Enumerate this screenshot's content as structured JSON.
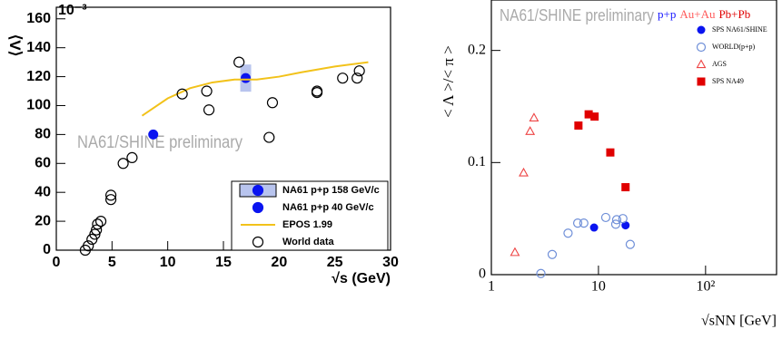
{
  "chart_data": [
    {
      "type": "scatter",
      "multiplier": "10⁻³",
      "xlabel": "√s (GeV)",
      "ylabel": "⟨Λ⟩",
      "annotation": "NA61/SHINE preliminary",
      "xlim": [
        0,
        30
      ],
      "xticks": [
        0,
        5,
        10,
        15,
        20,
        25,
        30
      ],
      "ylim": [
        0,
        168
      ],
      "yticks": [
        0,
        20,
        40,
        60,
        80,
        100,
        120,
        140,
        160
      ],
      "legend": "lower right",
      "series": [
        {
          "name": "NA61 p+p 158 GeV/c",
          "color": "#0a14f0",
          "marker": "box-circle",
          "x": [
            17.0
          ],
          "values": [
            119
          ]
        },
        {
          "name": "NA61 p+p 40 GeV/c",
          "color": "#0a14f0",
          "marker": "circle",
          "x": [
            8.7
          ],
          "values": [
            80
          ]
        },
        {
          "name": "EPOS 1.99",
          "color": "#f2c21a",
          "marker": "line",
          "x": [
            7.7,
            10,
            12,
            14,
            16,
            18,
            20,
            22,
            25,
            28
          ],
          "values": [
            93,
            105,
            112,
            116,
            118,
            118,
            120,
            123,
            127,
            130
          ]
        },
        {
          "name": "World data",
          "color": "#000000",
          "marker": "open-circle",
          "x": [
            2.6,
            2.87,
            3.2,
            3.46,
            3.6,
            3.7,
            4.0,
            4.9,
            4.9,
            6.0,
            6.8,
            11.3,
            13.5,
            13.7,
            16.4,
            19.1,
            19.4,
            23.4,
            23.4,
            25.7,
            27.0,
            27.2
          ],
          "values": [
            0,
            3,
            7.5,
            11,
            14,
            18,
            20,
            38,
            35,
            60,
            64,
            108,
            110,
            97,
            130,
            78,
            102,
            109,
            110,
            119,
            119,
            124
          ]
        }
      ]
    },
    {
      "type": "scatter",
      "xlabel": "√sNN [GeV]",
      "ylabel": "< Λ >/< π >",
      "annotation": "NA61/SHINE preliminary",
      "systems": [
        {
          "text": "p+p",
          "color": "#1a1aff"
        },
        {
          "text": "Au+Au",
          "color": "#ff5a5a"
        },
        {
          "text": "Pb+Pb",
          "color": "#e00000"
        }
      ],
      "xlog": true,
      "xlim": [
        1,
        460
      ],
      "xticks": [
        1,
        10,
        {
          "value": 100,
          "label": "10²"
        }
      ],
      "ylim": [
        0,
        0.245
      ],
      "yticks": [
        0,
        0.1,
        0.2
      ],
      "legend": "upper right",
      "series": [
        {
          "name": "SPS NA61/SHINE",
          "color": "#0a14f0",
          "marker": "circle",
          "x": [
            9.1,
            17.9
          ],
          "values": [
            0.042,
            0.044
          ]
        },
        {
          "name": "WORLD(p+p)",
          "color": "#6f8fd8",
          "marker": "open-circle",
          "x": [
            2.9,
            3.7,
            5.2,
            6.4,
            7.3,
            11.7,
            14.5,
            14.8,
            16.9,
            19.8
          ],
          "values": [
            0.001,
            0.018,
            0.037,
            0.046,
            0.046,
            0.051,
            0.045,
            0.049,
            0.05,
            0.027
          ]
        },
        {
          "name": "AGS",
          "color": "#ee4444",
          "marker": "open-triangle",
          "x": [
            1.66,
            2.0,
            2.3,
            2.5
          ],
          "values": [
            0.02,
            0.091,
            0.128,
            0.14
          ]
        },
        {
          "name": "SPS NA49",
          "color": "#e00000",
          "marker": "square",
          "x": [
            6.5,
            8.1,
            9.2,
            12.9,
            17.9
          ],
          "values": [
            0.133,
            0.143,
            0.141,
            0.109,
            0.078
          ]
        }
      ]
    }
  ]
}
